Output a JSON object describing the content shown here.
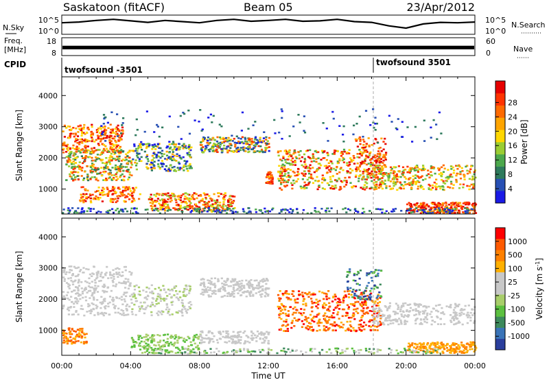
{
  "header": {
    "station": "Saskatoon (fitACF)",
    "beam": "Beam 05",
    "date": "23/Apr/2012"
  },
  "chart_data": [
    {
      "type": "line",
      "panel": "nsky-nsearch",
      "left_label": "N.Sky",
      "right_label": "N.Search",
      "left_ticks": [
        "10^5",
        "10^0"
      ],
      "right_ticks": [
        "10^5",
        "10^0"
      ],
      "x_hours": [
        0,
        1,
        2,
        3,
        4,
        5,
        6,
        7,
        8,
        9,
        10,
        11,
        12,
        13,
        14,
        15,
        16,
        17,
        18,
        19,
        20,
        21,
        22,
        23,
        24
      ],
      "log_nsky": [
        3.0,
        3.2,
        3.6,
        3.9,
        3.5,
        3.1,
        3.6,
        3.3,
        3.0,
        3.6,
        3.9,
        3.4,
        3.6,
        3.9,
        3.4,
        3.5,
        3.9,
        3.3,
        3.1,
        2.2,
        1.6,
        2.7,
        3.1,
        3.0,
        3.2
      ]
    },
    {
      "type": "area",
      "panel": "freq-nave",
      "left_label": "Freq.",
      "left_unit": "[MHz]",
      "right_label": "Nave",
      "left_ticks": [
        "18",
        "8"
      ],
      "right_ticks": [
        "60",
        "0"
      ],
      "freq_range_mhz": [
        8,
        18
      ],
      "freq_band_mhz": [
        11.5,
        13.5
      ]
    },
    {
      "type": "table",
      "panel": "cpid",
      "label": "CPID",
      "programs": [
        {
          "name": "twofsound -3501",
          "start_hour": 0
        },
        {
          "name": "twofsound 3501",
          "start_hour": 18.1
        }
      ]
    },
    {
      "type": "heatmap",
      "panel": "power",
      "ylabel": "Slant Range [km]",
      "yticks": [
        "1000",
        "2000",
        "3000",
        "4000"
      ],
      "ylim": [
        200,
        4600
      ],
      "xlim_hours": [
        0,
        24
      ],
      "colorbar": {
        "label": "Power [dB]",
        "ticks": [
          "4",
          "8",
          "12",
          "16",
          "20",
          "24",
          "28"
        ],
        "colors": [
          "#1a1ae6",
          "#2850b4",
          "#2e7a5c",
          "#4ca84c",
          "#9acd32",
          "#ffd700",
          "#ffa500",
          "#ff6a00",
          "#ff3300",
          "#e60000"
        ]
      }
    },
    {
      "type": "heatmap",
      "panel": "velocity",
      "ylabel": "Slant Range [km]",
      "xlabel": "Time UT",
      "yticks": [
        "1000",
        "2000",
        "3000",
        "4000"
      ],
      "xticks": [
        "00:00",
        "04:00",
        "08:00",
        "12:00",
        "16:00",
        "20:00",
        "00:00"
      ],
      "ylim": [
        200,
        4600
      ],
      "xlim_hours": [
        0,
        24
      ],
      "colorbar": {
        "label": "Velocity [m s",
        "label_sup": "-1",
        "ticks": [
          "1000",
          "500",
          "100",
          "25",
          "-25",
          "-100",
          "-500",
          "-1000"
        ],
        "colors": [
          "#2a3e9c",
          "#3a74b8",
          "#3d8a5c",
          "#5cc040",
          "#a8ce6a",
          "#c8c8c8",
          "#c8c8c8",
          "#ffb000",
          "#ff8000",
          "#ff5a00",
          "#ff0000"
        ]
      }
    }
  ],
  "scatter_regions": [
    {
      "panel": "power",
      "t": [
        0,
        3.5
      ],
      "r": [
        2200,
        3100
      ],
      "n": 260,
      "pal": [
        5,
        9
      ]
    },
    {
      "panel": "power",
      "t": [
        0.2,
        4
      ],
      "r": [
        1300,
        2300
      ],
      "n": 320,
      "pal": [
        2,
        8
      ]
    },
    {
      "panel": "power",
      "t": [
        1,
        4.5
      ],
      "r": [
        600,
        1100
      ],
      "n": 140,
      "pal": [
        5,
        9
      ]
    },
    {
      "panel": "power",
      "t": [
        4,
        7.5
      ],
      "r": [
        1600,
        2500
      ],
      "n": 240,
      "pal": [
        0,
        6
      ]
    },
    {
      "panel": "power",
      "t": [
        5,
        10
      ],
      "r": [
        300,
        900
      ],
      "n": 300,
      "pal": [
        4,
        9
      ]
    },
    {
      "panel": "power",
      "t": [
        8,
        12
      ],
      "r": [
        2200,
        2700
      ],
      "n": 240,
      "pal": [
        0,
        8
      ]
    },
    {
      "panel": "power",
      "t": [
        11.8,
        12.2
      ],
      "r": [
        1200,
        1600
      ],
      "n": 40,
      "pal": [
        6,
        9
      ]
    },
    {
      "panel": "power",
      "t": [
        12.5,
        18.5
      ],
      "r": [
        1000,
        2300
      ],
      "n": 460,
      "pal": [
        3,
        9
      ]
    },
    {
      "panel": "power",
      "t": [
        17,
        18.8
      ],
      "r": [
        1500,
        2700
      ],
      "n": 120,
      "pal": [
        6,
        9
      ]
    },
    {
      "panel": "power",
      "t": [
        18,
        24
      ],
      "r": [
        1000,
        1800
      ],
      "n": 320,
      "pal": [
        3,
        8
      ]
    },
    {
      "panel": "power",
      "t": [
        20,
        24
      ],
      "r": [
        250,
        600
      ],
      "n": 220,
      "pal": [
        6,
        9
      ]
    },
    {
      "panel": "power",
      "t": [
        0,
        24
      ],
      "r": [
        250,
        420
      ],
      "n": 240,
      "pal": [
        0,
        3
      ]
    },
    {
      "panel": "power",
      "t": [
        2,
        22
      ],
      "r": [
        2500,
        3600
      ],
      "n": 120,
      "pal": [
        0,
        2
      ]
    },
    {
      "panel": "velocity",
      "t": [
        0,
        4
      ],
      "r": [
        1500,
        3100
      ],
      "n": 320,
      "pal": [
        5,
        6
      ]
    },
    {
      "panel": "velocity",
      "t": [
        0,
        1.5
      ],
      "r": [
        600,
        1100
      ],
      "n": 80,
      "pal": [
        7,
        9
      ]
    },
    {
      "panel": "velocity",
      "t": [
        4,
        8
      ],
      "r": [
        300,
        900
      ],
      "n": 180,
      "pal": [
        3,
        4
      ]
    },
    {
      "panel": "velocity",
      "t": [
        4,
        7.5
      ],
      "r": [
        1500,
        2500
      ],
      "n": 160,
      "pal": [
        4,
        6
      ]
    },
    {
      "panel": "velocity",
      "t": [
        8,
        12
      ],
      "r": [
        2100,
        2700
      ],
      "n": 220,
      "pal": [
        5,
        6
      ]
    },
    {
      "panel": "velocity",
      "t": [
        8,
        12
      ],
      "r": [
        600,
        1000
      ],
      "n": 140,
      "pal": [
        5,
        6
      ]
    },
    {
      "panel": "velocity",
      "t": [
        12.5,
        18.5
      ],
      "r": [
        1000,
        2300
      ],
      "n": 440,
      "pal": [
        7,
        10
      ]
    },
    {
      "panel": "velocity",
      "t": [
        16.5,
        18.5
      ],
      "r": [
        2000,
        3000
      ],
      "n": 90,
      "pal": [
        0,
        3
      ]
    },
    {
      "panel": "velocity",
      "t": [
        18,
        24
      ],
      "r": [
        1200,
        1900
      ],
      "n": 260,
      "pal": [
        5,
        6
      ]
    },
    {
      "panel": "velocity",
      "t": [
        20,
        24
      ],
      "r": [
        300,
        650
      ],
      "n": 200,
      "pal": [
        7,
        8
      ]
    },
    {
      "panel": "velocity",
      "t": [
        5,
        22
      ],
      "r": [
        280,
        450
      ],
      "n": 160,
      "pal": [
        2,
        6
      ]
    }
  ]
}
